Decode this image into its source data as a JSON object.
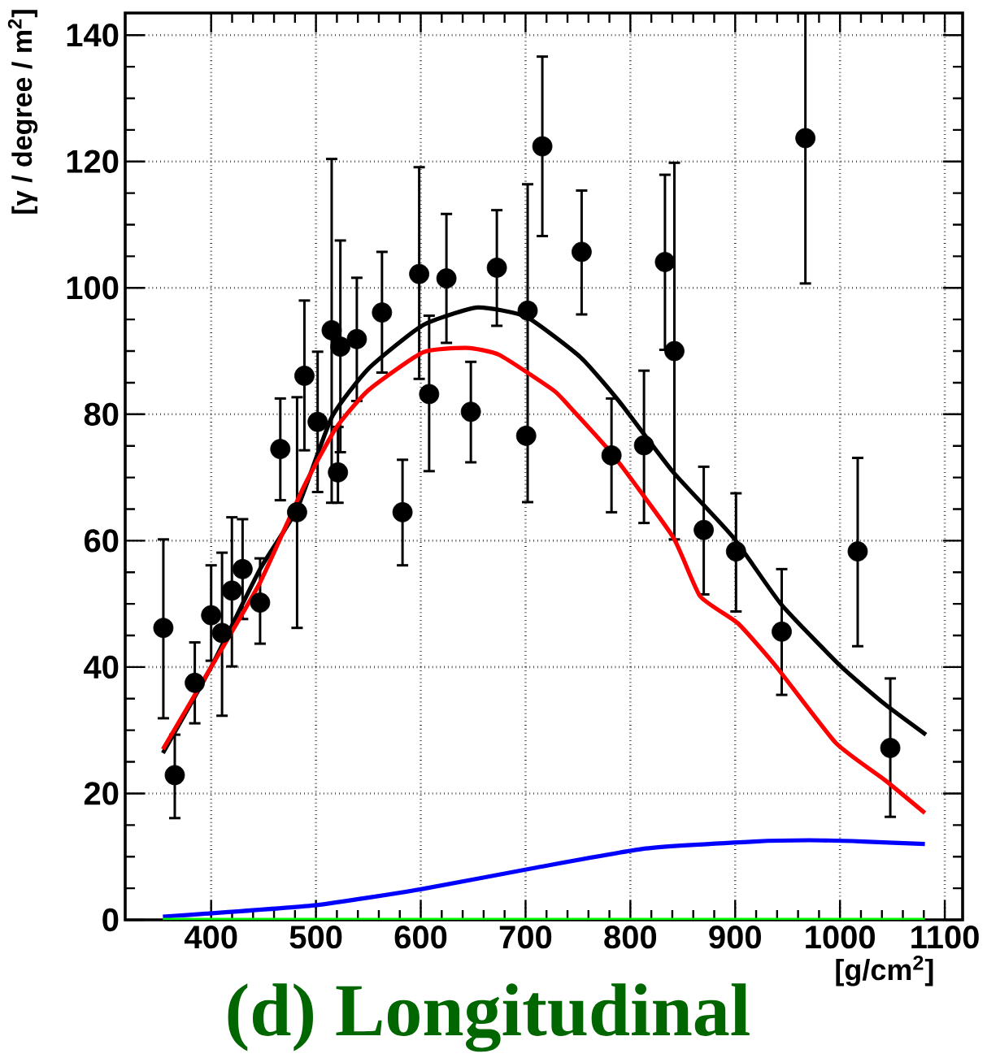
{
  "chart_data": {
    "type": "scatter",
    "title": "(d) Longitudinal",
    "xlabel": "[g/cm$^{2}$]",
    "ylabel": "[γ / degree / m$^{2}$]",
    "xlim": [
      318,
      1117
    ],
    "ylim": [
      0,
      143.5
    ],
    "xticks": [
      400,
      500,
      600,
      700,
      800,
      900,
      1000,
      1100
    ],
    "yticks": [
      0,
      20,
      40,
      60,
      80,
      100,
      120,
      140
    ],
    "grid": true,
    "series": [
      {
        "color": "#000000",
        "marker": "circle",
        "x": [
          354.4,
          365.3,
          384.4,
          400,
          410.4,
          419.8,
          430,
          446.7,
          466,
          482,
          489,
          501.6,
          515,
          521,
          523.3,
          539,
          563,
          582.6,
          598.5,
          608,
          624.5,
          647.8,
          672.6,
          700.6,
          702,
          716,
          753.5,
          782,
          813,
          833,
          842,
          870,
          900.8,
          944.4,
          967,
          1016.9,
          1048
        ],
        "values": [
          46.2,
          22.9,
          37.5,
          48.2,
          45.4,
          52.1,
          55.5,
          50.2,
          74.5,
          64.5,
          86.1,
          78.8,
          93.3,
          70.8,
          90.7,
          91.9,
          96.1,
          64.5,
          102.2,
          83.2,
          101.5,
          80.4,
          103.2,
          76.6,
          96.4,
          122.4,
          105.7,
          73.5,
          75.1,
          104.1,
          90,
          61.7,
          58.3,
          45.6,
          123.7,
          58.3,
          27.2
        ],
        "errors": [
          [
            31.9,
            60.2
          ],
          [
            16.1,
            29.3
          ],
          [
            31.1,
            43.9
          ],
          [
            41,
            56.1
          ],
          [
            32.3,
            58.1
          ],
          [
            40.1,
            63.7
          ],
          [
            47.6,
            63.4
          ],
          [
            43.7,
            57.2
          ],
          [
            66.4,
            82.5
          ],
          [
            46.2,
            82.7
          ],
          [
            74.3,
            98
          ],
          [
            67.7,
            89.9
          ],
          [
            66,
            120.4
          ],
          [
            66,
            78
          ],
          [
            74,
            107.5
          ],
          [
            82.1,
            101.6
          ],
          [
            86.6,
            105.7
          ],
          [
            56.1,
            72.8
          ],
          [
            85.6,
            119.1
          ],
          [
            71,
            95.6
          ],
          [
            91.3,
            111.7
          ],
          [
            72.4,
            88.3
          ],
          [
            94,
            112.3
          ],
          null,
          [
            66.1,
            116.4
          ],
          [
            108.2,
            136.6
          ],
          [
            95.8,
            115.4
          ],
          [
            64.5,
            82.5
          ],
          [
            62.8,
            86.9
          ],
          [
            90.2,
            117.9
          ],
          [
            60.2,
            119.8
          ],
          [
            51.5,
            71.7
          ],
          [
            48.8,
            67.5
          ],
          [
            35.6,
            55.5
          ],
          [
            100.7,
            143.5
          ],
          [
            43.3,
            73.1
          ],
          [
            16.3,
            38.2
          ]
        ]
      },
      {
        "type": "line",
        "color": "#000000",
        "marker": "none",
        "line_style": "solid",
        "x": [
          354,
          400,
          446.7,
          482,
          515,
          550,
          602,
          654,
          701,
          752.6,
          789,
          840.6,
          897.7,
          944,
          1001,
          1043,
          1082
        ],
        "values": [
          26.4,
          40,
          55.5,
          65,
          79.5,
          87.2,
          94.1,
          96.9,
          95.4,
          89,
          82.1,
          70.9,
          60.6,
          49.9,
          40.1,
          34.1,
          29.3
        ]
      },
      {
        "type": "line",
        "color": "#ff0000",
        "marker": "none",
        "line_style": "solid",
        "x": [
          354,
          400,
          446.7,
          488,
          519,
          550,
          602,
          643.7,
          675,
          726.6,
          742,
          783.7,
          840.6,
          866.6,
          902.8,
          939,
          996,
          1043,
          1081
        ],
        "values": [
          27,
          40,
          53.4,
          68.4,
          77.8,
          83.8,
          89.8,
          90.5,
          89.4,
          83.8,
          81.2,
          73.5,
          60.6,
          51.2,
          46.9,
          40.1,
          28,
          22.1,
          16.9
        ]
      },
      {
        "type": "line",
        "color": "#0000ff",
        "marker": "none",
        "line_style": "solid",
        "x": [
          354,
          498.5,
          602,
          711,
          814.8,
          918.5,
          970.3,
          1022,
          1081
        ],
        "values": [
          0.5,
          2.3,
          4.9,
          8.3,
          11.3,
          12.4,
          12.6,
          12.4,
          12
        ]
      },
      {
        "type": "line",
        "color": "#00ff00",
        "marker": "none",
        "line_style": "solid",
        "x": [
          354,
          1081
        ],
        "values": [
          0,
          0
        ]
      }
    ]
  }
}
